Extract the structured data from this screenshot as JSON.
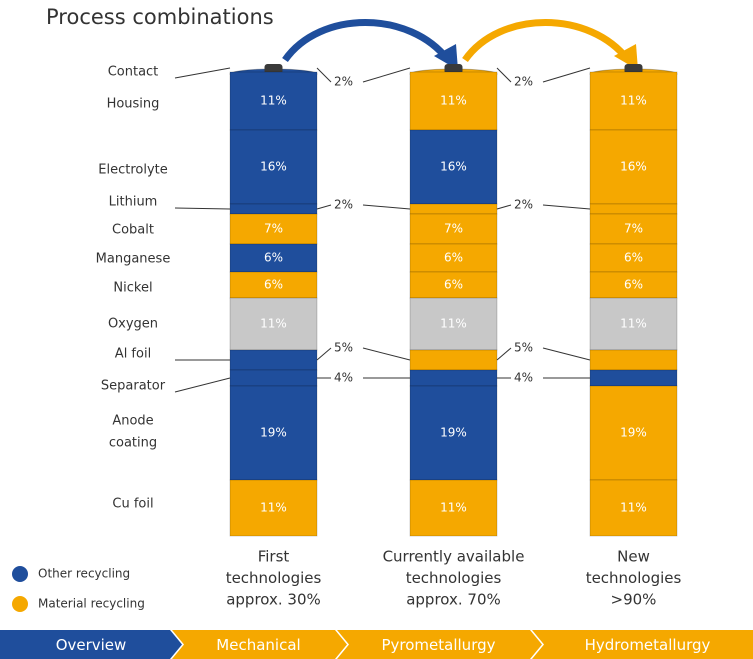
{
  "title": "Process combinations",
  "components": [
    {
      "name": "Contact",
      "share": "2%",
      "inside": false
    },
    {
      "name": "Housing",
      "share": "11%",
      "inside": true
    },
    {
      "name": "Electrolyte",
      "share": "16%",
      "inside": true
    },
    {
      "name": "Lithium",
      "share": "2%",
      "inside": false
    },
    {
      "name": "Cobalt",
      "share": "7%",
      "inside": true
    },
    {
      "name": "Manganese",
      "share": "6%",
      "inside": true
    },
    {
      "name": "Nickel",
      "share": "6%",
      "inside": true
    },
    {
      "name": "Oxygen",
      "share": "11%",
      "inside": true
    },
    {
      "name": "Al foil",
      "share": "5%",
      "inside": false
    },
    {
      "name": "Separator",
      "share": "4%",
      "inside": false
    },
    {
      "name": [
        "Anode",
        "coating"
      ],
      "share": "19%",
      "inside": true
    },
    {
      "name": "Cu foil",
      "share": "11%",
      "inside": true
    }
  ],
  "columns": [
    {
      "caption": [
        "First",
        "technologies",
        "approx. 30%"
      ],
      "colors": [
        "#3a3a3a",
        "#1f4e9c",
        "#1f4e9c",
        "#1f4e9c",
        "#f5a800",
        "#1f4e9c",
        "#f5a800",
        "#c8c8c8",
        "#1f4e9c",
        "#1f4e9c",
        "#1f4e9c",
        "#f5a800"
      ]
    },
    {
      "caption": [
        "Currently available",
        "technologies",
        "approx. 70%"
      ],
      "colors": [
        "#3a3a3a",
        "#f5a800",
        "#1f4e9c",
        "#f5a800",
        "#f5a800",
        "#f5a800",
        "#f5a800",
        "#c8c8c8",
        "#f5a800",
        "#1f4e9c",
        "#1f4e9c",
        "#f5a800"
      ]
    },
    {
      "caption": [
        "New",
        "technologies",
        ">90%"
      ],
      "colors": [
        "#3a3a3a",
        "#f5a800",
        "#f5a800",
        "#f5a800",
        "#f5a800",
        "#f5a800",
        "#f5a800",
        "#c8c8c8",
        "#f5a800",
        "#1f4e9c",
        "#f5a800",
        "#f5a800"
      ]
    }
  ],
  "legend": [
    {
      "label": "Other recycling",
      "color": "#1f4e9c"
    },
    {
      "label": "Material recycling",
      "color": "#f5a800"
    }
  ],
  "tabs": [
    {
      "label": "Overview",
      "color": "#1f4e9c"
    },
    {
      "label": "Mechanical",
      "color": "#f5a800"
    },
    {
      "label": "Pyrometallurgy",
      "color": "#f5a800"
    },
    {
      "label": "Hydrometallurgy",
      "color": "#f5a800"
    }
  ]
}
